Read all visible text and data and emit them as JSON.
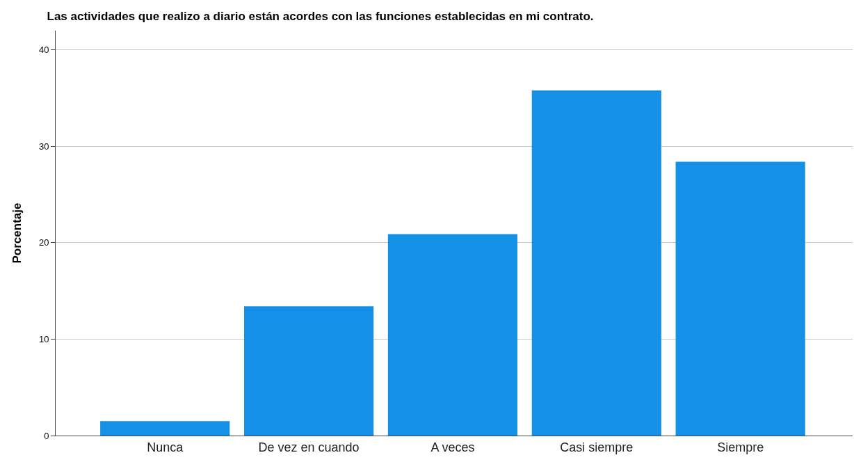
{
  "chart_data": {
    "type": "bar",
    "title": "Las actividades que realizo a diario están acordes con las funciones establecidas en mi contrato.",
    "ylabel": "Porcentaje",
    "categories": [
      "Nunca",
      "De vez en cuando",
      "A veces",
      "Casi siempre",
      "Siempre"
    ],
    "series": [
      {
        "color": "#1490e6",
        "values": [
          1.5,
          13.4,
          20.9,
          35.8,
          28.4
        ]
      }
    ],
    "ylim": [
      0,
      42
    ],
    "yticks": [
      0,
      10,
      20,
      30,
      40
    ],
    "grid": "y",
    "legend": false
  }
}
